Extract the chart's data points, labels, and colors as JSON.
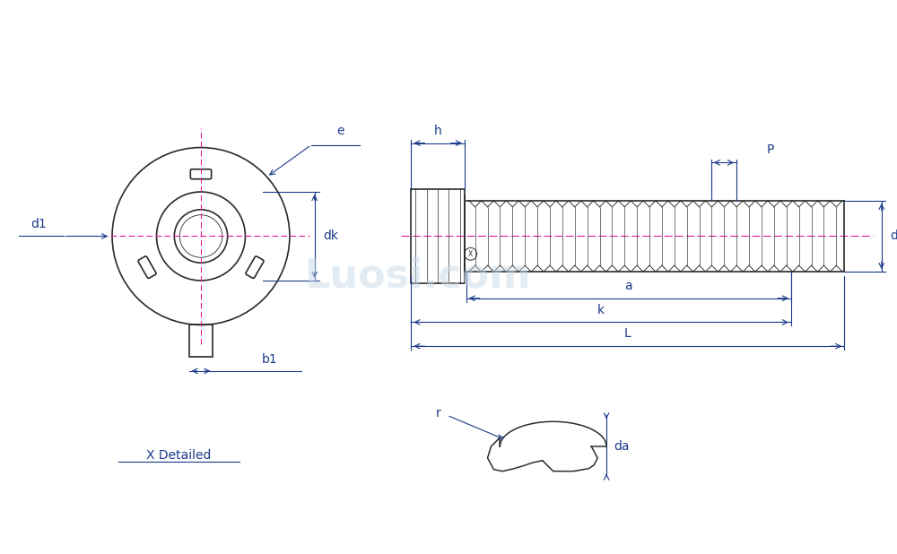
{
  "bg_color": "#ffffff",
  "line_color": "#2a2a2a",
  "dim_color": "#1a3a8a",
  "center_line_color": "#e91e8c",
  "watermark_color": "#c8d8e8",
  "label_e": "e",
  "label_d1": "d1",
  "label_dk": "dk",
  "label_b1": "b1",
  "label_h": "h",
  "label_p": "P",
  "label_d": "d",
  "label_a": "a",
  "label_k": "k",
  "label_L": "L",
  "label_r": "r",
  "label_da": "da",
  "label_x_detailed": "X Detailed",
  "font_size_labels": 10,
  "font_size_watermark": 36
}
